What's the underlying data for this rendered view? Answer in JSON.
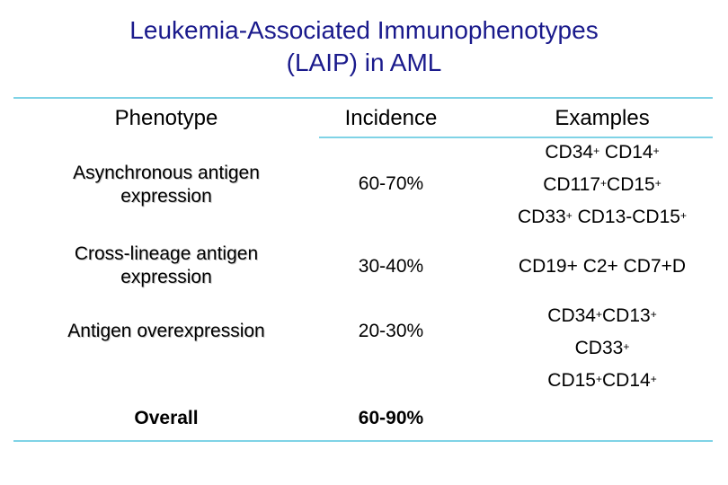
{
  "title": {
    "line1": "Leukemia-Associated Immunophenotypes",
    "line2": "(LAIP) in AML"
  },
  "table": {
    "headers": {
      "phenotype": "Phenotype",
      "incidence": "Incidence",
      "examples": "Examples"
    },
    "rows": [
      {
        "phenotype_l1": "Asynchronous antigen",
        "phenotype_l2": "expression",
        "incidence": "60-70%",
        "examples": [
          [
            [
              "CD34",
              "+"
            ],
            [
              " CD14",
              "+"
            ]
          ],
          [
            [
              "CD117",
              "+"
            ],
            [
              "CD15",
              "+"
            ]
          ],
          [
            [
              "CD33",
              "+"
            ],
            [
              " CD13-CD15",
              "+"
            ]
          ]
        ]
      },
      {
        "phenotype_l1": "Cross-lineage antigen",
        "phenotype_l2": "expression",
        "incidence": "30-40%",
        "example_text": "CD19+ C2+ CD7+D"
      },
      {
        "phenotype_l1": "Antigen overexpression",
        "incidence": "20-30%",
        "examples": [
          [
            [
              "CD34",
              "+"
            ],
            [
              "CD13",
              "+"
            ]
          ],
          [
            [
              "CD33",
              "+"
            ]
          ],
          [
            [
              "CD15",
              "+"
            ],
            [
              "CD14",
              "+"
            ]
          ]
        ]
      },
      {
        "phenotype_l1": "Overall",
        "incidence": "60-90%"
      }
    ]
  },
  "colors": {
    "title": "#1a1a8c",
    "rule": "#7fd3e6"
  }
}
